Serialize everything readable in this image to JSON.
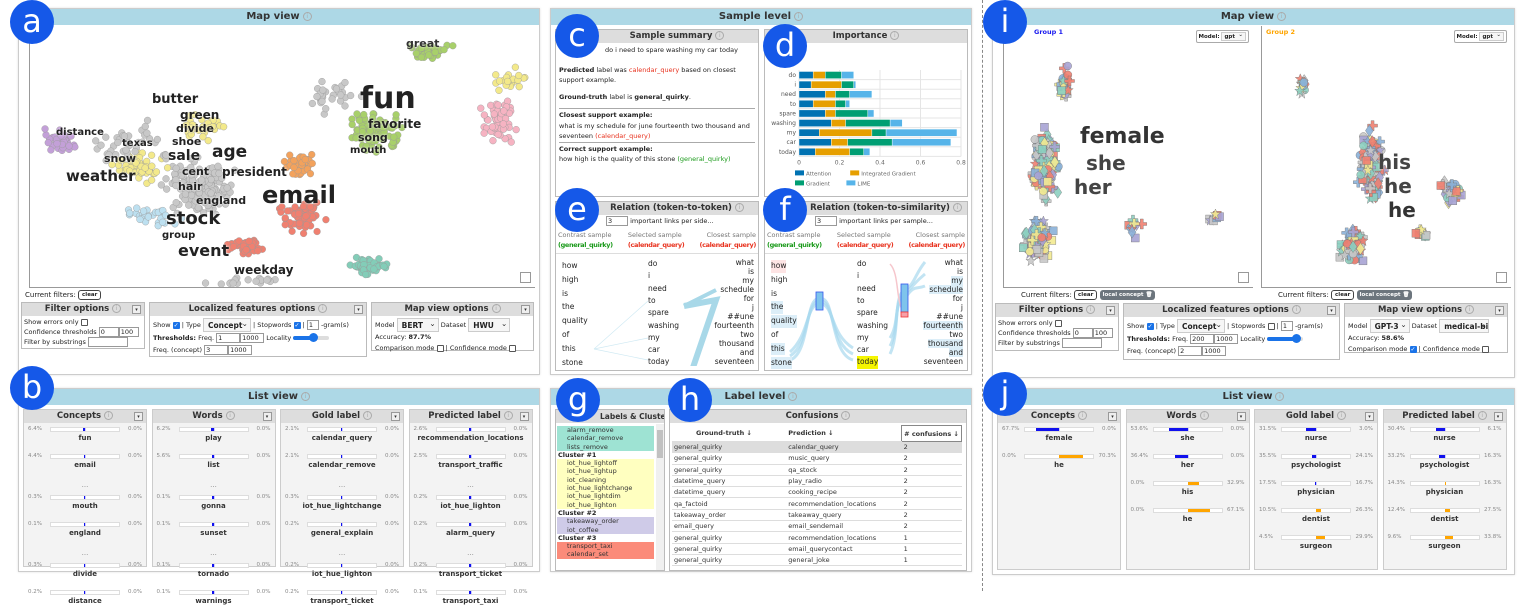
{
  "badges": [
    "a",
    "b",
    "c",
    "d",
    "e",
    "f",
    "g",
    "h",
    "i",
    "j"
  ],
  "left": {
    "map_title": "Map view",
    "words": [
      "great",
      "fun",
      "favorite",
      "song",
      "mouth",
      "butter",
      "green",
      "divide",
      "distance",
      "shoe",
      "texas",
      "sale",
      "age",
      "snow",
      "cent",
      "president",
      "weather",
      "hair",
      "england",
      "email",
      "stock",
      "group",
      "event",
      "weekday"
    ],
    "current_filters_label": "Current filters:",
    "clear_label": "clear",
    "filter": {
      "title": "Filter options",
      "show_errors": "Show errors only",
      "conf_label": "Confidence thresholds",
      "conf_min": "0",
      "conf_max": "100",
      "substr_label": "Filter by substrings",
      "substr_value": ""
    },
    "localized": {
      "title": "Localized features options",
      "show": "Show",
      "type": "| Type",
      "type_value": "Concept",
      "stopwords": "| Stopwords",
      "gram_value": "1",
      "gram_label": "-gram(s)",
      "thresholds": "Thresholds:",
      "freq": "Freq.",
      "freq_min": "1",
      "freq_max": "1000",
      "locality": "Locality",
      "freq_concept": "Freq. (concept)",
      "fc_min": "3",
      "fc_max": "1000",
      "locality_value": 0.55
    },
    "mapopts": {
      "title": "Map view options",
      "model_label": "Model",
      "model": "BERT",
      "dataset_label": "Dataset",
      "dataset": "HWU",
      "accuracy_label": "Accuracy:",
      "accuracy": "87.7%",
      "comparison": "Comparison mode",
      "confidence": "| Confidence mode"
    },
    "list_title": "List view",
    "lists": [
      {
        "title": "Concepts",
        "items": [
          {
            "label": "fun",
            "l": "6.4%",
            "r": "0.0%",
            "lv": 6.4,
            "rv": 0
          },
          {
            "label": "email",
            "l": "4.4%",
            "r": "0.0%",
            "lv": 4.4,
            "rv": 0
          },
          {
            "ellipsis": "..."
          },
          {
            "label": "mouth",
            "l": "0.3%",
            "r": "0.0%",
            "lv": 0.3,
            "rv": 0
          },
          {
            "label": "england",
            "l": "0.1%",
            "r": "0.0%",
            "lv": 0.1,
            "rv": 0
          },
          {
            "ellipsis": "..."
          },
          {
            "label": "divide",
            "l": "0.3%",
            "r": "0.0%",
            "lv": 0.3,
            "rv": 0
          },
          {
            "label": "distance",
            "l": "0.2%",
            "r": "0.0%",
            "lv": 0.2,
            "rv": 0
          }
        ]
      },
      {
        "title": "Words",
        "items": [
          {
            "label": "play",
            "l": "6.2%",
            "r": "0.0%",
            "lv": 6.2,
            "rv": 0
          },
          {
            "label": "list",
            "l": "5.6%",
            "r": "0.0%",
            "lv": 5.6,
            "rv": 0
          },
          {
            "ellipsis": "..."
          },
          {
            "label": "gonna",
            "l": "0.1%",
            "r": "0.0%",
            "lv": 0.1,
            "rv": 0
          },
          {
            "label": "sunset",
            "l": "0.1%",
            "r": "0.0%",
            "lv": 0.1,
            "rv": 0
          },
          {
            "ellipsis": "..."
          },
          {
            "label": "tornado",
            "l": "0.1%",
            "r": "0.0%",
            "lv": 0.1,
            "rv": 0
          },
          {
            "label": "warnings",
            "l": "0.1%",
            "r": "0.0%",
            "lv": 0.1,
            "rv": 0
          }
        ]
      },
      {
        "title": "Gold label",
        "items": [
          {
            "label": "calendar_query",
            "l": "2.1%",
            "r": "0.0%",
            "lv": 2.1,
            "rv": 0
          },
          {
            "label": "calendar_remove",
            "l": "2.1%",
            "r": "0.0%",
            "lv": 2.1,
            "rv": 0
          },
          {
            "ellipsis": "..."
          },
          {
            "label": "iot_hue_lightchange",
            "l": "0.3%",
            "r": "0.0%",
            "lv": 0.3,
            "rv": 0
          },
          {
            "label": "general_explain",
            "l": "0.2%",
            "r": "0.0%",
            "lv": 0.2,
            "rv": 0
          },
          {
            "ellipsis": "..."
          },
          {
            "label": "iot_hue_lighton",
            "l": "0.2%",
            "r": "0.0%",
            "lv": 0.2,
            "rv": 0
          },
          {
            "label": "transport_ticket",
            "l": "0.2%",
            "r": "0.0%",
            "lv": 0.2,
            "rv": 0
          }
        ]
      },
      {
        "title": "Predicted label",
        "items": [
          {
            "label": "recommendation_locations",
            "l": "2.6%",
            "r": "0.0%",
            "lv": 2.6,
            "rv": 0
          },
          {
            "label": "transport_traffic",
            "l": "2.5%",
            "r": "0.0%",
            "lv": 2.5,
            "rv": 0
          },
          {
            "ellipsis": "..."
          },
          {
            "label": "iot_hue_lighton",
            "l": "0.2%",
            "r": "0.0%",
            "lv": 0.2,
            "rv": 0
          },
          {
            "label": "alarm_query",
            "l": "0.2%",
            "r": "0.0%",
            "lv": 0.2,
            "rv": 0
          },
          {
            "ellipsis": "..."
          },
          {
            "label": "transport_ticket",
            "l": "0.2%",
            "r": "0.0%",
            "lv": 0.2,
            "rv": 0
          },
          {
            "label": "transport_taxi",
            "l": "0.1%",
            "r": "0.0%",
            "lv": 0.1,
            "rv": 0
          }
        ]
      }
    ]
  },
  "middle": {
    "sample_level": "Sample level",
    "summary": {
      "title": "Sample summary",
      "sentence": "do i need to spare washing my car today",
      "pred_pre": "Predicted",
      "pred_mid": " label was ",
      "pred_label": "calendar_query",
      "pred_post": " based on closest support example.",
      "gt_pre": "Ground-truth",
      "gt_mid": " label is ",
      "gt_label": "general_quirky",
      "gt_post": ".",
      "closest_title": "Closest support example:",
      "closest_text": "what is my schedule for june fourteenth two thousand and seventeen ",
      "closest_label": "(calendar_query)",
      "correct_title": "Correct support example:",
      "correct_text": "how high is the quality of this stone ",
      "correct_label": "(general_quirky)"
    },
    "relation1": {
      "title": "Relation (token-to-token)",
      "top_value": "3",
      "top_text": "important links per side..."
    },
    "relation2": {
      "title": "Relation (token-to-similarity)",
      "top_value": "3",
      "top_text": "important links per sample..."
    },
    "rel_headers": {
      "contrast": "Contrast sample",
      "contrast_label": "(general_quirky)",
      "selected": "Selected sample",
      "selected_label": "(calendar_query)",
      "closest": "Closest sample",
      "closest_label": "(calendar_query)"
    },
    "contrast_tokens": [
      "how",
      "high",
      "is",
      "the",
      "quality",
      "of",
      "this",
      "stone"
    ],
    "selected_tokens": [
      "do",
      "i",
      "need",
      "to",
      "spare",
      "washing",
      "my",
      "car",
      "today"
    ],
    "closest_tokens": [
      "what",
      "is",
      "my",
      "schedule",
      "for",
      "j",
      "##une",
      "fourteenth",
      "two",
      "thousand",
      "and",
      "seventeen"
    ],
    "label_level": "Label level",
    "clusters_title": "Labels & Clusters",
    "clusters": [
      {
        "name": "",
        "color": "#9ee3d3",
        "items": [
          "alarm_remove",
          "calendar_remove",
          "lists_remove"
        ]
      },
      {
        "name": "Cluster #1",
        "color": "#ffffc0",
        "items": [
          "iot_hue_lightoff",
          "iot_hue_lightup",
          "iot_cleaning",
          "iot_hue_lightchange",
          "iot_hue_lightdim",
          "iot_hue_lighton"
        ]
      },
      {
        "name": "Cluster #2",
        "color": "#cfcbe8",
        "items": [
          "takeaway_order",
          "iot_coffee"
        ]
      },
      {
        "name": "Cluster #3",
        "color": "#fb8b7a",
        "items": [
          "transport_taxi",
          "calendar_set"
        ]
      }
    ],
    "confusions_title": "Confusions",
    "conf_headers": [
      "Ground-truth ↓",
      "Prediction ↓",
      "# confusions ↓"
    ],
    "conf_rows": [
      [
        "general_quirky",
        "calendar_query",
        "2"
      ],
      [
        "general_quirky",
        "music_query",
        "2"
      ],
      [
        "general_quirky",
        "qa_stock",
        "2"
      ],
      [
        "datetime_query",
        "play_radio",
        "2"
      ],
      [
        "datetime_query",
        "cooking_recipe",
        "2"
      ],
      [
        "qa_factoid",
        "recommendation_locations",
        "2"
      ],
      [
        "takeaway_order",
        "takeaway_query",
        "2"
      ],
      [
        "email_query",
        "email_sendemail",
        "2"
      ],
      [
        "general_quirky",
        "recommendation_locations",
        "1"
      ],
      [
        "general_quirky",
        "email_querycontact",
        "1"
      ],
      [
        "general_quirky",
        "general_joke",
        "1"
      ]
    ]
  },
  "chart_data": {
    "type": "bar",
    "stacked": true,
    "orientation": "horizontal",
    "title": "Importance",
    "categories": [
      "do",
      "i",
      "need",
      "to",
      "spare",
      "washing",
      "my",
      "car",
      "today"
    ],
    "series": [
      {
        "name": "Attention",
        "color": "#0072b2",
        "values": [
          0.07,
          0.06,
          0.13,
          0.07,
          0.13,
          0.16,
          0.1,
          0.16,
          0.08
        ]
      },
      {
        "name": "Integrated Gradient",
        "color": "#e69f00",
        "values": [
          0.06,
          0.15,
          0.05,
          0.11,
          0.05,
          0.07,
          0.26,
          0.08,
          0.17
        ]
      },
      {
        "name": "Gradient",
        "color": "#009e73",
        "values": [
          0.08,
          0.06,
          0.07,
          0.05,
          0.16,
          0.22,
          0.07,
          0.22,
          0.07
        ]
      },
      {
        "name": "LIME",
        "color": "#56b4e9",
        "values": [
          0.06,
          0.01,
          0.11,
          0.02,
          0.03,
          0.06,
          0.35,
          0.29,
          0.03
        ]
      }
    ],
    "xlim": [
      0,
      0.8
    ],
    "xticks": [
      "0",
      "0.2",
      "0.4",
      "0.6",
      "0.8"
    ],
    "legend": "bottom"
  },
  "right": {
    "map_title": "Map view",
    "group1": "Group 1",
    "group2": "Group 2",
    "model_label": "Model:",
    "model_value": "gpt",
    "words1": [
      "female",
      "she",
      "her"
    ],
    "words2": [
      "his",
      "he",
      "he"
    ],
    "current_filters_label": "Current filters:",
    "clear_label": "clear",
    "local_concept": "local concept",
    "filter": {
      "title": "Filter options",
      "show_errors": "Show errors only",
      "conf_label": "Confidence thresholds",
      "conf_min": "0",
      "conf_max": "100",
      "substr_label": "Filter by substrings"
    },
    "localized": {
      "title": "Localized features options",
      "show": "Show",
      "type": "| Type",
      "type_value": "Concept",
      "stopwords": "| Stopwords",
      "gram_value": "1",
      "gram_label": "-gram(s)",
      "thresholds": "Thresholds:",
      "freq": "Freq.",
      "freq_min": "200",
      "freq_max": "1000",
      "locality": "Locality",
      "freq_concept": "Freq. (concept)",
      "fc_min": "2",
      "fc_max": "1000",
      "locality_value": 0.8
    },
    "mapopts": {
      "title": "Map view options",
      "model_label": "Model",
      "model": "GPT-3",
      "dataset_label": "Dataset",
      "dataset": "medical-bi",
      "accuracy_label": "Accuracy:",
      "accuracy": "58.6%",
      "comparison": "Comparison mode",
      "confidence": "| Confidence mode"
    },
    "list_title": "List view",
    "lists": [
      {
        "title": "Concepts",
        "items": [
          {
            "label": "female",
            "l": "67.7%",
            "r": "0.0%",
            "lv": 67.7,
            "rv": 0
          },
          {
            "label": "he",
            "l": "0.0%",
            "r": "70.3%",
            "lv": 0,
            "rv": 70.3
          }
        ]
      },
      {
        "title": "Words",
        "items": [
          {
            "label": "she",
            "l": "53.6%",
            "r": "0.0%",
            "lv": 53.6,
            "rv": 0
          },
          {
            "label": "her",
            "l": "36.4%",
            "r": "0.0%",
            "lv": 36.4,
            "rv": 0
          },
          {
            "label": "his",
            "l": "0.0%",
            "r": "32.9%",
            "lv": 0,
            "rv": 32.9
          },
          {
            "label": "he",
            "l": "0.0%",
            "r": "67.1%",
            "lv": 0,
            "rv": 67.1
          }
        ]
      },
      {
        "title": "Gold label",
        "items": [
          {
            "label": "nurse",
            "l": "31.5%",
            "r": "3.0%",
            "lv": 28.5,
            "rv": 0
          },
          {
            "label": "psychologist",
            "l": "35.5%",
            "r": "24.1%",
            "lv": 11.4,
            "rv": 0
          },
          {
            "label": "physician",
            "l": "17.5%",
            "r": "16.7%",
            "lv": 0.8,
            "rv": 0
          },
          {
            "label": "dentist",
            "l": "10.5%",
            "r": "26.3%",
            "lv": 0,
            "rv": 15.8
          },
          {
            "label": "surgeon",
            "l": "4.5%",
            "r": "29.9%",
            "lv": 0,
            "rv": 25.4
          }
        ]
      },
      {
        "title": "Predicted label",
        "items": [
          {
            "label": "nurse",
            "l": "30.4%",
            "r": "6.1%",
            "lv": 24.3,
            "rv": 0
          },
          {
            "label": "psychologist",
            "l": "33.2%",
            "r": "16.3%",
            "lv": 16.9,
            "rv": 0
          },
          {
            "label": "physician",
            "l": "14.3%",
            "r": "16.3%",
            "lv": 0,
            "rv": 2.0
          },
          {
            "label": "dentist",
            "l": "12.4%",
            "r": "27.5%",
            "lv": 0,
            "rv": 15.1
          },
          {
            "label": "surgeon",
            "l": "9.6%",
            "r": "33.8%",
            "lv": 0,
            "rv": 24.2
          }
        ]
      }
    ]
  }
}
